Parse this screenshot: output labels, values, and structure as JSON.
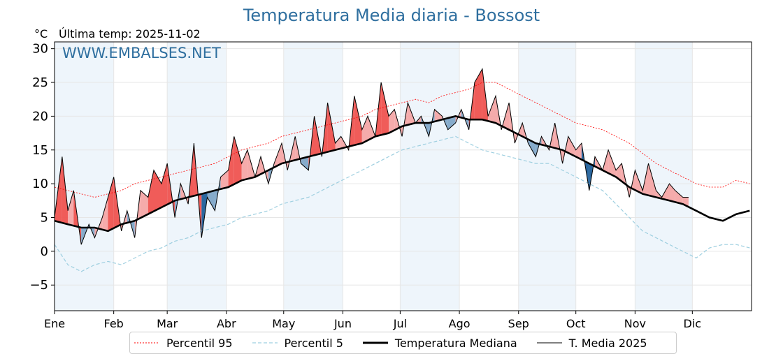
{
  "header": {
    "title": "Temperatura Media diaria - Bossost",
    "unit": "°C",
    "last_temp": "Última temp: 2025-11-02",
    "watermark": "WWW.EMBALSES.NET"
  },
  "colors": {
    "title": "#2f6f9f",
    "p95": "#ff0000",
    "p5": "#9ecfe0",
    "median": "#000000",
    "current": "#000000",
    "above_fill": "#f4a6a6",
    "above_fill_strong": "#ef5350",
    "below_fill": "#7fa6c8",
    "below_fill_strong": "#1f5f9a",
    "month_band": "#eef5fb"
  },
  "chart_data": {
    "type": "line",
    "title": "Temperatura Media diaria - Bossost",
    "ylabel": "°C",
    "ylim": [
      -8.8,
      31
    ],
    "xlim": [
      0,
      365
    ],
    "grid": true,
    "legend_placement": "bottom-center",
    "yticks": [
      -5,
      0,
      5,
      10,
      15,
      20,
      25,
      30
    ],
    "months": [
      {
        "label": "Ene",
        "day": 0
      },
      {
        "label": "Feb",
        "day": 31
      },
      {
        "label": "Mar",
        "day": 59
      },
      {
        "label": "Abr",
        "day": 90
      },
      {
        "label": "May",
        "day": 120
      },
      {
        "label": "Jun",
        "day": 151
      },
      {
        "label": "Jul",
        "day": 181
      },
      {
        "label": "Ago",
        "day": 212
      },
      {
        "label": "Sep",
        "day": 243
      },
      {
        "label": "Oct",
        "day": 273
      },
      {
        "label": "Nov",
        "day": 304
      },
      {
        "label": "Dic",
        "day": 334
      }
    ],
    "series": [
      {
        "name": "Percentil 95",
        "x": [
          0,
          7,
          14,
          21,
          28,
          35,
          42,
          49,
          56,
          63,
          70,
          77,
          84,
          91,
          98,
          105,
          112,
          119,
          126,
          133,
          140,
          147,
          154,
          161,
          168,
          175,
          182,
          189,
          196,
          203,
          210,
          217,
          224,
          231,
          238,
          245,
          252,
          259,
          266,
          273,
          280,
          287,
          294,
          301,
          308,
          315,
          322,
          329,
          336,
          343,
          350,
          357,
          364
        ],
        "y": [
          9.5,
          9,
          8.5,
          8,
          8.5,
          9,
          10,
          10.5,
          11,
          11.5,
          12,
          12.5,
          13,
          14,
          15,
          15.5,
          16,
          17,
          17.5,
          18,
          18.5,
          19,
          19.5,
          20,
          21,
          21.5,
          22,
          22.5,
          22,
          23,
          23.5,
          24,
          25,
          25,
          24,
          23,
          22,
          21,
          20,
          19,
          18.5,
          18,
          17,
          16,
          14.5,
          13,
          12,
          11,
          10,
          9.5,
          9.5,
          10.5,
          10
        ]
      },
      {
        "name": "Percentil 5",
        "x": [
          0,
          7,
          14,
          21,
          28,
          35,
          42,
          49,
          56,
          63,
          70,
          77,
          84,
          91,
          98,
          105,
          112,
          119,
          126,
          133,
          140,
          147,
          154,
          161,
          168,
          175,
          182,
          189,
          196,
          203,
          210,
          217,
          224,
          231,
          238,
          245,
          252,
          259,
          266,
          273,
          280,
          287,
          294,
          301,
          308,
          315,
          322,
          329,
          336,
          343,
          350,
          357,
          364
        ],
        "y": [
          1,
          -2,
          -3,
          -2,
          -1.5,
          -2,
          -1,
          0,
          0.5,
          1.5,
          2,
          3,
          3.5,
          4,
          5,
          5.5,
          6,
          7,
          7.5,
          8,
          9,
          10,
          11,
          12,
          13,
          14,
          15,
          15.5,
          16,
          16.5,
          17,
          16,
          15,
          14.5,
          14,
          13.5,
          13,
          13,
          12,
          11,
          10,
          9,
          7,
          5,
          3,
          2,
          1,
          0,
          -1,
          0.5,
          1,
          1,
          0.5
        ]
      },
      {
        "name": "Temperatura Mediana",
        "x": [
          0,
          7,
          14,
          21,
          28,
          35,
          42,
          49,
          56,
          63,
          70,
          77,
          84,
          91,
          98,
          105,
          112,
          119,
          126,
          133,
          140,
          147,
          154,
          161,
          168,
          175,
          182,
          189,
          196,
          203,
          210,
          217,
          224,
          231,
          238,
          245,
          252,
          259,
          266,
          273,
          280,
          287,
          294,
          301,
          308,
          315,
          322,
          329,
          336,
          343,
          350,
          357,
          364
        ],
        "y": [
          4.5,
          4,
          3.5,
          3.5,
          3,
          4,
          4.5,
          5.5,
          6.5,
          7.5,
          8,
          8.5,
          9,
          9.5,
          10.5,
          11,
          12,
          13,
          13.5,
          14,
          14.5,
          15,
          15.5,
          16,
          17,
          17.5,
          18.5,
          19,
          19,
          19.5,
          20,
          19.5,
          19.5,
          19,
          18,
          17,
          16,
          15.5,
          15,
          14,
          13,
          12,
          11,
          9.5,
          8.5,
          8,
          7.5,
          7,
          6,
          5,
          4.5,
          5.5,
          6
        ]
      },
      {
        "name": "T. Media 2025",
        "x": [
          0,
          4,
          7,
          10,
          14,
          18,
          21,
          25,
          28,
          31,
          35,
          38,
          42,
          45,
          49,
          52,
          56,
          59,
          63,
          66,
          70,
          73,
          77,
          80,
          84,
          87,
          91,
          94,
          98,
          101,
          105,
          108,
          112,
          115,
          119,
          122,
          126,
          129,
          133,
          136,
          140,
          143,
          147,
          150,
          154,
          157,
          161,
          164,
          168,
          171,
          175,
          178,
          182,
          185,
          189,
          192,
          196,
          199,
          203,
          206,
          210,
          213,
          217,
          220,
          224,
          227,
          231,
          234,
          238,
          241,
          245,
          248,
          252,
          255,
          259,
          262,
          266,
          269,
          273,
          276,
          280,
          283,
          287,
          290,
          294,
          297,
          301,
          304,
          308,
          311,
          315,
          318,
          322,
          325,
          329,
          332
        ],
        "y": [
          5,
          14,
          6,
          9,
          1,
          4,
          2,
          5,
          8,
          11,
          3,
          6,
          2,
          9,
          8,
          12,
          10,
          13,
          5,
          10,
          7,
          16,
          2,
          8,
          6,
          11,
          12,
          17,
          13,
          15,
          11,
          14,
          10,
          13,
          16,
          12,
          17,
          13,
          12,
          20,
          14,
          22,
          16,
          17,
          15,
          23,
          18,
          20,
          17,
          25,
          20,
          21,
          17,
          22,
          19,
          20,
          17,
          21,
          20,
          18,
          19,
          21,
          18,
          25,
          27,
          20,
          23,
          18,
          22,
          16,
          19,
          16,
          14,
          17,
          15,
          19,
          13,
          17,
          15,
          16,
          9,
          14,
          12,
          15,
          12,
          13,
          8,
          12,
          9,
          13,
          9,
          8,
          10,
          9,
          8,
          8
        ]
      }
    ]
  },
  "legend": {
    "items": [
      {
        "label": "Percentil 95"
      },
      {
        "label": "Percentil 5"
      },
      {
        "label": "Temperatura Mediana"
      },
      {
        "label": "T. Media 2025"
      }
    ]
  }
}
